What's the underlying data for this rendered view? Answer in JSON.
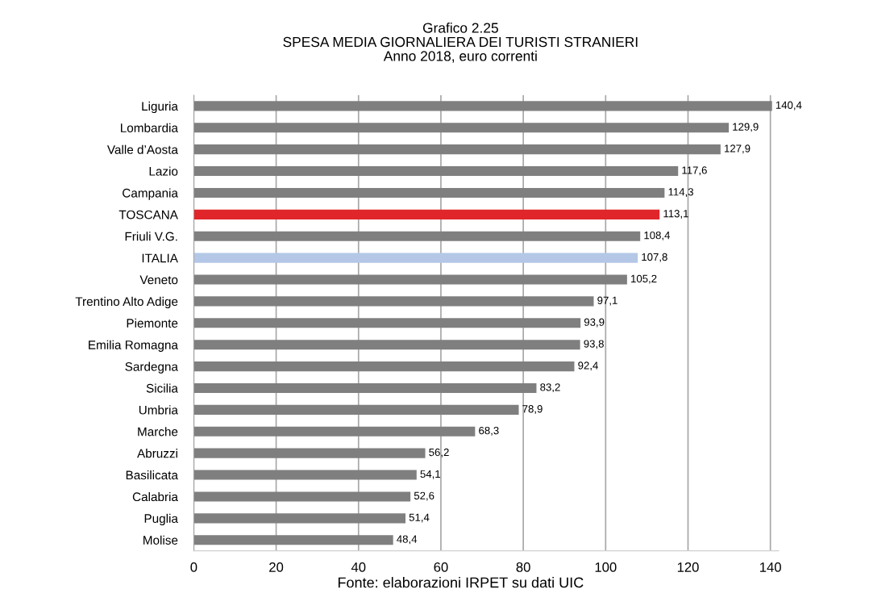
{
  "chart_data": {
    "type": "bar",
    "orientation": "horizontal",
    "title": "Grafico 2.25\nSPESA MEDIA GIORNALIERA DEI TURISTI STRANIERI\nAnno 2018, euro correnti",
    "categories": [
      "Liguria",
      "Lombardia",
      "Valle d’Aosta",
      "Lazio",
      "Campania",
      "TOSCANA",
      "Friuli V.G.",
      "ITALIA",
      "Veneto",
      "Trentino Alto Adige",
      "Piemonte",
      "Emilia Romagna",
      "Sardegna",
      "Sicilia",
      "Umbria",
      "Marche",
      "Abruzzi",
      "Basilicata",
      "Calabria",
      "Puglia",
      "Molise"
    ],
    "values": [
      140.4,
      129.9,
      127.9,
      117.6,
      114.3,
      113.1,
      108.4,
      107.8,
      105.2,
      97.1,
      93.9,
      93.8,
      92.4,
      83.2,
      78.9,
      68.3,
      56.2,
      54.1,
      52.6,
      51.4,
      48.4
    ],
    "value_labels": [
      "140,4",
      "129,9",
      "127,9",
      "117,6",
      "114,3",
      "113,1",
      "108,4",
      "107,8",
      "105,2",
      "97,1",
      "93,9",
      "93,8",
      "92,4",
      "83,2",
      "78,9",
      "68,3",
      "56,2",
      "54,1",
      "52,6",
      "51,4",
      "48,4"
    ],
    "colors": [
      "#7f7f7f",
      "#7f7f7f",
      "#7f7f7f",
      "#7f7f7f",
      "#7f7f7f",
      "#e0262a",
      "#7f7f7f",
      "#b4c7e7",
      "#7f7f7f",
      "#7f7f7f",
      "#7f7f7f",
      "#7f7f7f",
      "#7f7f7f",
      "#7f7f7f",
      "#7f7f7f",
      "#7f7f7f",
      "#7f7f7f",
      "#7f7f7f",
      "#7f7f7f",
      "#7f7f7f",
      "#7f7f7f"
    ],
    "xlim": [
      0,
      142
    ],
    "xticks": [
      0,
      20,
      40,
      60,
      80,
      100,
      120,
      140
    ],
    "grid": "x",
    "annotations": [
      "Fonte: elaborazioni IRPET su dati UIC"
    ]
  }
}
